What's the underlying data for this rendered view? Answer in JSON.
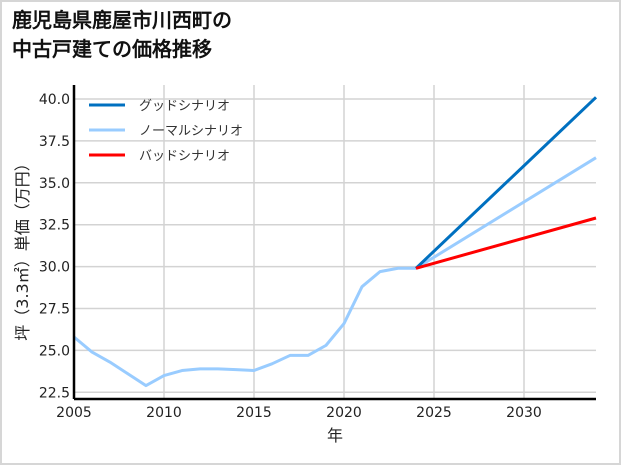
{
  "title_lines": [
    "鹿児島県鹿屋市川西町の",
    "中古戸建ての価格推移"
  ],
  "chart_data": {
    "type": "line",
    "title": "鹿児島県鹿屋市川西町の中古戸建ての価格推移",
    "xlabel": "年",
    "ylabel": "坪（3.3㎡）単価（万円）",
    "xlim": [
      2005,
      2034
    ],
    "ylim": [
      22.1,
      40.1
    ],
    "x_ticks": [
      2005,
      2010,
      2015,
      2020,
      2025,
      2030
    ],
    "y_ticks": [
      "22.5",
      "25.0",
      "27.5",
      "30.0",
      "32.5",
      "35.0",
      "37.5",
      "40.0"
    ],
    "grid": true,
    "legend_position": "upper left",
    "series": [
      {
        "name": "グッドシナリオ",
        "color": "#0070c0",
        "x": [
          2024,
          2034
        ],
        "values": [
          29.9,
          40.1
        ]
      },
      {
        "name": "ノーマルシナリオ",
        "color": "#99ccff",
        "x": [
          2005,
          2006,
          2007,
          2008,
          2009,
          2010,
          2011,
          2012,
          2013,
          2014,
          2015,
          2016,
          2017,
          2018,
          2019,
          2020,
          2021,
          2022,
          2023,
          2024,
          2034
        ],
        "values": [
          25.8,
          24.9,
          24.3,
          23.6,
          22.9,
          23.5,
          23.8,
          23.9,
          23.9,
          23.85,
          23.8,
          24.2,
          24.7,
          24.7,
          25.3,
          26.6,
          28.8,
          29.7,
          29.9,
          29.9,
          36.5
        ]
      },
      {
        "name": "バッドシナリオ",
        "color": "#ff0000",
        "x": [
          2024,
          2034
        ],
        "values": [
          29.9,
          32.9
        ]
      }
    ]
  }
}
